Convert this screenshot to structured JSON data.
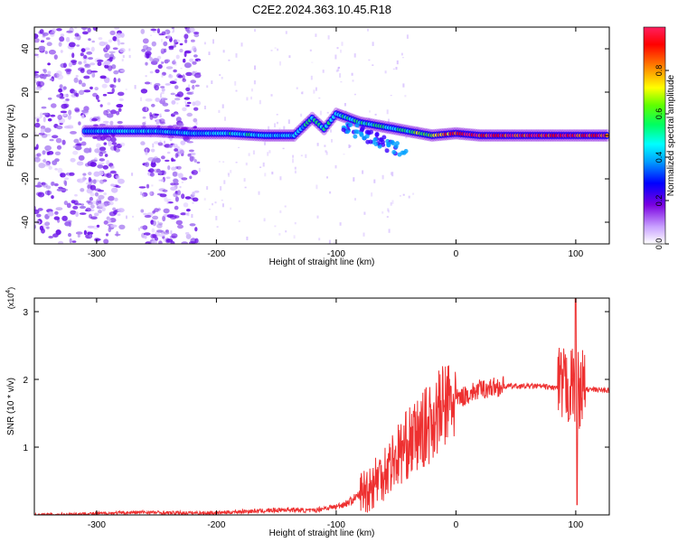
{
  "title": "C2E2.2024.363.10.45.R18",
  "chart_data": [
    {
      "type": "heatmap",
      "xlabel": "Height of straight line (km)",
      "ylabel": "Frequency (Hz)",
      "xlim": [
        -352,
        128
      ],
      "ylim": [
        -50,
        50
      ],
      "x_ticks": [
        -300,
        -200,
        -100,
        0,
        100
      ],
      "y_ticks": [
        -40,
        -20,
        0,
        20,
        40
      ],
      "colorbar": {
        "label": "Normalized spectral amplitude",
        "range": [
          0,
          1
        ],
        "ticks": [
          0,
          0.2,
          0.4,
          0.6,
          0.8
        ],
        "colors": [
          "#ffffff",
          "#c8a0ff",
          "#7a00e0",
          "#0000ff",
          "#00a0ff",
          "#00ffff",
          "#00ff60",
          "#60ff00",
          "#ffff00",
          "#ff8000",
          "#ff0000",
          "#ff2060"
        ]
      },
      "noise_bands_km": [
        [
          -352,
          -278
        ],
        [
          -262,
          -215
        ]
      ],
      "ridge": [
        {
          "x": -310,
          "y": 2,
          "amp": 0.35
        },
        {
          "x": -280,
          "y": 2,
          "amp": 0.45
        },
        {
          "x": -250,
          "y": 2,
          "amp": 0.4
        },
        {
          "x": -220,
          "y": 1,
          "amp": 0.4
        },
        {
          "x": -190,
          "y": 1,
          "amp": 0.45
        },
        {
          "x": -160,
          "y": 0,
          "amp": 0.45
        },
        {
          "x": -135,
          "y": 0,
          "amp": 0.4
        },
        {
          "x": -120,
          "y": 8,
          "amp": 0.5
        },
        {
          "x": -110,
          "y": 3,
          "amp": 0.45
        },
        {
          "x": -100,
          "y": 10,
          "amp": 0.5
        },
        {
          "x": -80,
          "y": 6,
          "amp": 0.5
        },
        {
          "x": -60,
          "y": 4,
          "amp": 0.5
        },
        {
          "x": -40,
          "y": 2,
          "amp": 0.55
        },
        {
          "x": -20,
          "y": 0,
          "amp": 0.7
        },
        {
          "x": 0,
          "y": 1,
          "amp": 0.9
        },
        {
          "x": 20,
          "y": 0,
          "amp": 0.95
        },
        {
          "x": 50,
          "y": 0,
          "amp": 0.95
        },
        {
          "x": 80,
          "y": 0,
          "amp": 0.95
        },
        {
          "x": 100,
          "y": 0,
          "amp": 0.95
        },
        {
          "x": 128,
          "y": 0,
          "amp": 0.9
        }
      ]
    },
    {
      "type": "line",
      "xlabel": "Height of straight line (km)",
      "ylabel": "SNR (10 * v/v)",
      "y_multiplier": "(x10^4)",
      "xlim": [
        -352,
        128
      ],
      "ylim": [
        0,
        3.2
      ],
      "x_ticks": [
        -300,
        -200,
        -100,
        0,
        100
      ],
      "y_ticks": [
        1,
        2,
        3
      ],
      "color": "#ee3030",
      "series": [
        {
          "x": [
            -352,
            -300,
            -260,
            -240,
            -200,
            -180,
            -160,
            -140,
            -120,
            -110,
            -100,
            -90,
            -80,
            -70,
            -60,
            -50,
            -40,
            -30,
            -20,
            -10,
            0,
            10,
            20,
            30,
            40,
            50,
            60,
            70,
            80,
            90,
            95,
            100,
            105,
            110,
            128
          ],
          "y": [
            0.0,
            0.02,
            0.04,
            0.03,
            0.03,
            0.05,
            0.06,
            0.08,
            0.06,
            0.1,
            0.12,
            0.18,
            0.3,
            0.45,
            0.65,
            0.85,
            1.05,
            1.2,
            1.4,
            1.6,
            1.7,
            1.78,
            1.85,
            1.88,
            1.9,
            1.9,
            1.9,
            1.9,
            1.88,
            1.87,
            1.9,
            1.88,
            1.86,
            1.85,
            1.84
          ]
        }
      ],
      "peak": {
        "x": 100,
        "y": 3.2
      },
      "dip": {
        "x": 101,
        "y": 0.15
      }
    }
  ]
}
